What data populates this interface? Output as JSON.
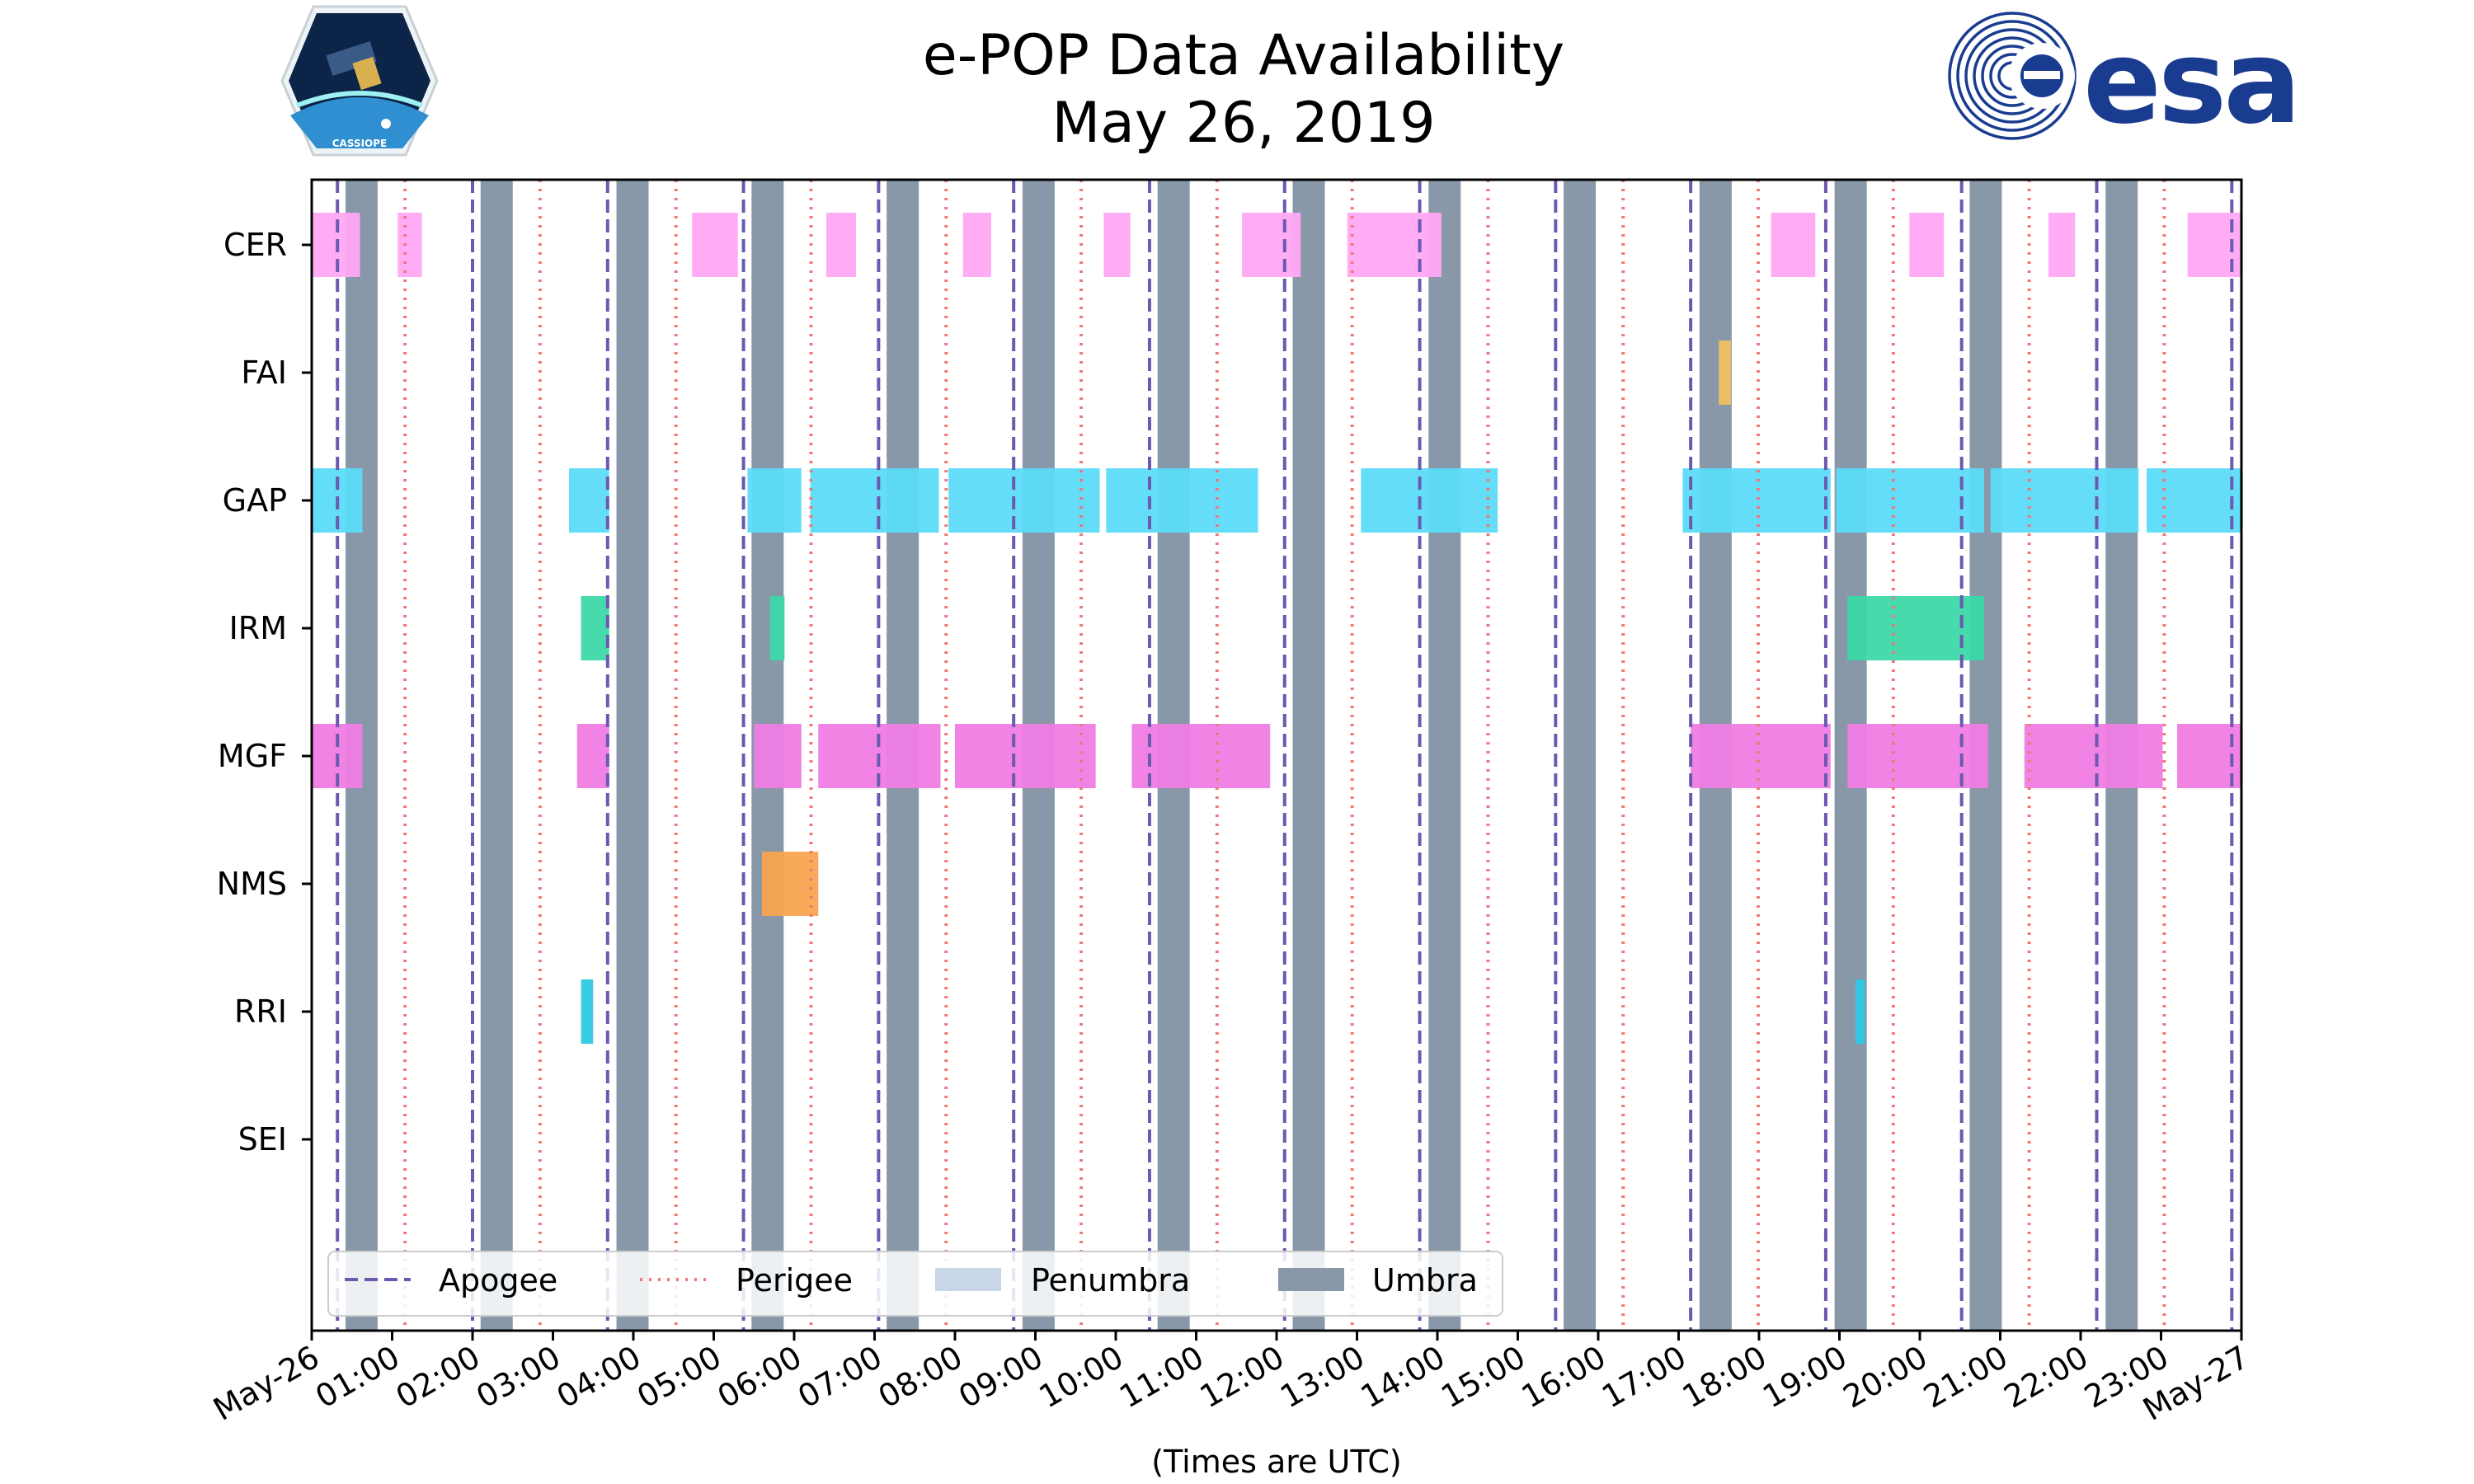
{
  "colors": {
    "apogee": "#6a5ab0",
    "perigee": "#f07878",
    "penumbra": "#c8d6e8",
    "umbra": "#8898a8",
    "CER": "#ffa8f4",
    "FAI": "#f0c060",
    "GAP": "#5cdcf8",
    "IRM": "#3cd8a8",
    "MGF": "#f07ce4",
    "NMS": "#f8a450",
    "RRI": "#30c8e4",
    "SEI": "#cccccc"
  },
  "logos": {
    "left": {
      "icon": "cassiope-mission-patch-icon",
      "text": "CASSIOPE"
    },
    "right": {
      "icon": "esa-logo-icon",
      "text": "esa"
    }
  },
  "chart_data": {
    "type": "timeline",
    "title": "e-POP Data Availability",
    "subtitle": "May 26, 2019",
    "xlabel": "(Times are UTC)",
    "xlim": [
      0,
      24
    ],
    "x_tick_labels": [
      "May-26",
      "01:00",
      "02:00",
      "03:00",
      "04:00",
      "05:00",
      "06:00",
      "07:00",
      "08:00",
      "09:00",
      "10:00",
      "11:00",
      "12:00",
      "13:00",
      "14:00",
      "15:00",
      "16:00",
      "17:00",
      "18:00",
      "19:00",
      "20:00",
      "21:00",
      "22:00",
      "23:00",
      "May-27"
    ],
    "instruments": [
      "CER",
      "FAI",
      "GAP",
      "IRM",
      "MGF",
      "NMS",
      "RRI",
      "SEI"
    ],
    "apogee_hours": [
      0.32,
      2.0,
      3.68,
      5.37,
      7.05,
      8.73,
      10.42,
      12.1,
      13.78,
      15.47,
      17.15,
      18.83,
      20.52,
      22.2,
      23.88
    ],
    "perigee_hours": [
      1.16,
      2.84,
      4.53,
      6.21,
      7.89,
      9.57,
      11.26,
      12.94,
      14.63,
      16.31,
      17.99,
      19.67,
      21.36,
      23.04
    ],
    "umbra_intervals": [
      [
        0.42,
        0.82
      ],
      [
        2.1,
        2.5
      ],
      [
        3.79,
        4.19
      ],
      [
        5.47,
        5.87
      ],
      [
        7.15,
        7.55
      ],
      [
        8.84,
        9.24
      ],
      [
        10.52,
        10.92
      ],
      [
        12.2,
        12.6
      ],
      [
        13.89,
        14.29
      ],
      [
        15.57,
        15.97
      ],
      [
        17.26,
        17.66
      ],
      [
        18.94,
        19.34
      ],
      [
        20.62,
        21.02
      ],
      [
        22.31,
        22.71
      ]
    ],
    "penumbra_intervals": [],
    "bars": {
      "CER": [
        [
          0.0,
          0.6
        ],
        [
          1.07,
          1.37
        ],
        [
          4.73,
          5.3
        ],
        [
          6.4,
          6.77
        ],
        [
          8.1,
          8.45
        ],
        [
          9.85,
          10.18
        ],
        [
          11.57,
          12.3
        ],
        [
          12.88,
          14.05
        ],
        [
          18.15,
          18.7
        ],
        [
          19.87,
          20.3
        ],
        [
          21.6,
          21.93
        ],
        [
          23.33,
          24.0
        ]
      ],
      "FAI": [
        [
          17.5,
          17.65
        ]
      ],
      "GAP": [
        [
          0.0,
          0.63
        ],
        [
          3.2,
          3.7
        ],
        [
          5.42,
          6.09
        ],
        [
          6.2,
          7.8
        ],
        [
          7.92,
          9.8
        ],
        [
          9.88,
          11.77
        ],
        [
          13.05,
          14.75
        ],
        [
          17.05,
          18.89
        ],
        [
          18.96,
          20.8
        ],
        [
          20.88,
          22.72
        ],
        [
          22.82,
          24.0
        ]
      ],
      "IRM": [
        [
          3.35,
          3.7
        ],
        [
          5.7,
          5.88
        ],
        [
          19.1,
          20.8
        ]
      ],
      "MGF": [
        [
          0.0,
          0.63
        ],
        [
          3.3,
          3.7
        ],
        [
          5.5,
          6.09
        ],
        [
          6.3,
          7.82
        ],
        [
          8.0,
          9.75
        ],
        [
          10.2,
          11.92
        ],
        [
          17.15,
          18.89
        ],
        [
          19.1,
          20.85
        ],
        [
          21.3,
          23.02
        ],
        [
          23.2,
          24.0
        ]
      ],
      "NMS": [
        [
          5.6,
          6.3
        ]
      ],
      "RRI": [
        [
          3.35,
          3.5
        ],
        [
          19.2,
          19.32
        ]
      ],
      "SEI": []
    },
    "legend": {
      "position": "lower-left",
      "entries": [
        {
          "label": "Apogee",
          "style": "dashed"
        },
        {
          "label": "Perigee",
          "style": "dotted"
        },
        {
          "label": "Penumbra",
          "style": "patch"
        },
        {
          "label": "Umbra",
          "style": "patch"
        }
      ]
    }
  }
}
